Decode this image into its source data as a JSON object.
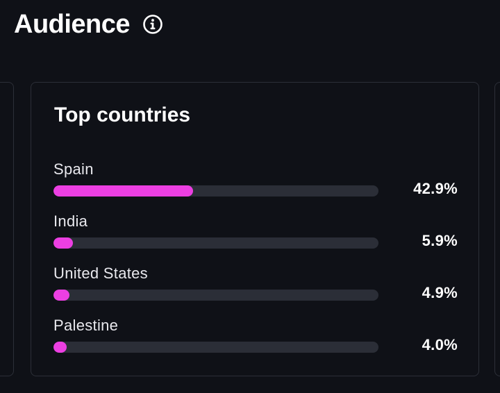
{
  "header": {
    "title": "Audience"
  },
  "card": {
    "title": "Top countries",
    "accent_color": "#ec3fe2",
    "track_color": "#2b2e37",
    "items": [
      {
        "label": "Spain",
        "value_text": "42.9%",
        "percent": 42.9
      },
      {
        "label": "India",
        "value_text": "5.9%",
        "percent": 5.9
      },
      {
        "label": "United States",
        "value_text": "4.9%",
        "percent": 4.9
      },
      {
        "label": "Palestine",
        "value_text": "4.0%",
        "percent": 4.0
      }
    ]
  },
  "icons": {
    "info": "info-circle-icon"
  }
}
